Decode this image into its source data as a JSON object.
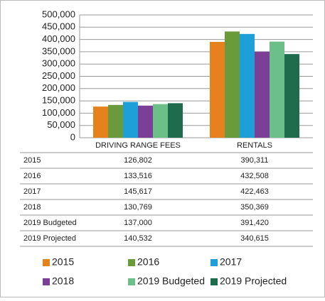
{
  "chart_data": {
    "type": "bar",
    "categories": [
      "DRIVING RANGE FEES",
      "RENTALS"
    ],
    "series": [
      {
        "name": "2015",
        "color": "#e6821e",
        "values": [
          126802,
          390311
        ],
        "value_labels": [
          "126,802",
          "390,311"
        ]
      },
      {
        "name": "2016",
        "color": "#6a9a3a",
        "values": [
          133516,
          432508
        ],
        "value_labels": [
          "133,516",
          "432,508"
        ]
      },
      {
        "name": "2017",
        "color": "#1f9fd8",
        "values": [
          145617,
          422463
        ],
        "value_labels": [
          "145,617",
          "422,463"
        ]
      },
      {
        "name": "2018",
        "color": "#7b3f96",
        "values": [
          130769,
          350369
        ],
        "value_labels": [
          "130,769",
          "350,369"
        ]
      },
      {
        "name": "2019 Budgeted",
        "color": "#6dbf8a",
        "values": [
          137000,
          391420
        ],
        "value_labels": [
          "137,000",
          "391,420"
        ]
      },
      {
        "name": "2019 Projected",
        "color": "#1e6b4d",
        "values": [
          140532,
          340615
        ],
        "value_labels": [
          "140,532",
          "340,615"
        ]
      }
    ],
    "ylim": [
      0,
      500000
    ],
    "yticks": [
      0,
      {
        "value": 50000,
        "label": "50,000"
      },
      {
        "value": 100000,
        "label": "100,000"
      },
      {
        "value": 150000,
        "label": "150,000"
      },
      {
        "value": 200000,
        "label": "200,000"
      },
      {
        "value": 250000,
        "label": "250,000"
      },
      {
        "value": 300000,
        "label": "300,000"
      },
      {
        "value": 350000,
        "label": "350,000"
      },
      {
        "value": 400000,
        "label": "400,000"
      },
      {
        "value": 450000,
        "label": "450,000"
      },
      {
        "value": 500000,
        "label": "500,000"
      }
    ],
    "grid": true
  }
}
